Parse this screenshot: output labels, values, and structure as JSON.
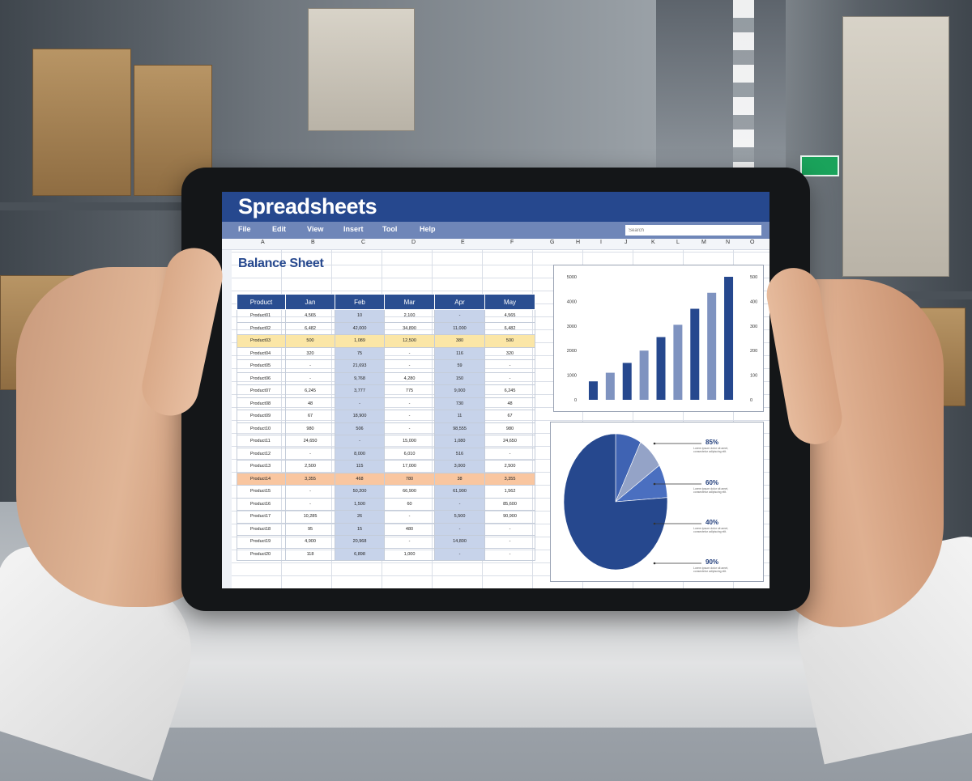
{
  "app": {
    "title": "Spreadsheets"
  },
  "menu": [
    "File",
    "Edit",
    "View",
    "Insert",
    "Tool",
    "Help"
  ],
  "search": {
    "placeholder": "Search"
  },
  "columns": [
    "A",
    "B",
    "C",
    "D",
    "E",
    "F",
    "G",
    "H",
    "I",
    "J",
    "K",
    "L",
    "M",
    "N",
    "O"
  ],
  "sheet": {
    "title": "Balance Sheet"
  },
  "table": {
    "headers": [
      "Product",
      "Jan",
      "Feb",
      "Mar",
      "Apr",
      "May"
    ],
    "rows": [
      [
        "Product01",
        "4,565",
        "10",
        "2,100",
        "-",
        "4,565"
      ],
      [
        "Product02",
        "6,482",
        "42,000",
        "34,890",
        "11,000",
        "6,482"
      ],
      [
        "Product03",
        "500",
        "1,089",
        "12,500",
        "380",
        "500"
      ],
      [
        "Product04",
        "320",
        "75",
        "-",
        "116",
        "320"
      ],
      [
        "Product05",
        "-",
        "21,693",
        "-",
        "59",
        "-"
      ],
      [
        "Product06",
        "-",
        "9,768",
        "4,280",
        "150",
        "-"
      ],
      [
        "Product07",
        "6,245",
        "3,777",
        "775",
        "9,000",
        "6,245"
      ],
      [
        "Product08",
        "48",
        "-",
        "-",
        "730",
        "48"
      ],
      [
        "Product09",
        "67",
        "18,900",
        "-",
        "11",
        "67"
      ],
      [
        "Product10",
        "980",
        "506",
        "-",
        "98,555",
        "980"
      ],
      [
        "Product11",
        "24,650",
        "-",
        "15,000",
        "1,080",
        "24,650"
      ],
      [
        "Product12",
        "-",
        "8,000",
        "6,010",
        "516",
        "-"
      ],
      [
        "Product13",
        "2,500",
        "115",
        "17,000",
        "3,000",
        "2,500"
      ],
      [
        "Product14",
        "3,355",
        "468",
        "780",
        "38",
        "3,355"
      ],
      [
        "Product15",
        "-",
        "50,200",
        "66,900",
        "61,900",
        "1,562"
      ],
      [
        "Product16",
        "-",
        "1,500",
        "60",
        "-",
        "85,600"
      ],
      [
        "Product17",
        "10,285",
        "26",
        "-",
        "5,500",
        "90,900"
      ],
      [
        "Product18",
        "95",
        "15",
        "480",
        "-",
        "-"
      ],
      [
        "Product19",
        "4,900",
        "20,968",
        "-",
        "14,800",
        "-"
      ],
      [
        "Product20",
        "118",
        "6,898",
        "1,000",
        "-",
        "-"
      ]
    ],
    "highlight": {
      "yellow_row": 2,
      "orange_row": 13
    }
  },
  "chart_data": [
    {
      "type": "bar",
      "values": [
        750,
        1100,
        1500,
        2000,
        2550,
        3050,
        3700,
        4350,
        5000
      ],
      "ylim": [
        0,
        5000
      ],
      "yticks": [
        "0",
        "1000",
        "2000",
        "3000",
        "4000",
        "5000"
      ],
      "yticks_right": [
        "0",
        "100",
        "200",
        "300",
        "400",
        "500"
      ],
      "colors": [
        "#26488e",
        "#7f93c0"
      ],
      "grid": false
    },
    {
      "type": "pie",
      "slices": [
        {
          "label": "85%",
          "value": 76,
          "color": "#26488e"
        },
        {
          "label": "60%",
          "value": 8,
          "color": "#3f63b3"
        },
        {
          "label": "40%",
          "value": 8,
          "color": "#94a3c7"
        },
        {
          "label": "90%",
          "value": 8,
          "color": "#4a6fc0"
        }
      ],
      "legend_notes": [
        "Lorem ipsum dolor sit amet, consectetur adipiscing elit.",
        "Lorem ipsum dolor sit amet, consectetur adipiscing elit.",
        "Lorem ipsum dolor sit amet, consectetur adipiscing elit.",
        "Lorem ipsum dolor sit amet, consectetur adipiscing elit."
      ]
    }
  ]
}
